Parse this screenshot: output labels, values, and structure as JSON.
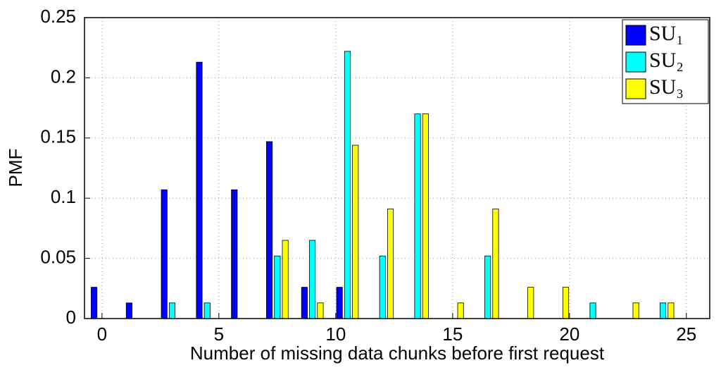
{
  "chart_data": {
    "type": "bar",
    "xlabel": "Number of missing data chunks before first request",
    "ylabel": "PMF",
    "x": [
      0,
      1.5,
      3,
      4.5,
      6,
      7.5,
      9,
      10.5,
      12,
      13.5,
      15,
      16.5,
      18,
      19.5,
      21,
      22.5,
      24
    ],
    "series": [
      {
        "name": "SU₁",
        "color": "#0000ff",
        "values": [
          0.026,
          0.013,
          0.107,
          0.213,
          0.107,
          0.147,
          0.026,
          0.026,
          0,
          0,
          0,
          0,
          0,
          0,
          0,
          0,
          0
        ]
      },
      {
        "name": "SU₂",
        "color": "#00ffff",
        "values": [
          0,
          0,
          0.013,
          0.013,
          0,
          0.052,
          0.065,
          0.222,
          0.052,
          0.17,
          0,
          0.052,
          0,
          0,
          0.013,
          0,
          0.013
        ]
      },
      {
        "name": "SU₃",
        "color": "#ffff00",
        "values": [
          0,
          0,
          0,
          0,
          0,
          0.065,
          0.013,
          0.144,
          0.091,
          0.17,
          0.013,
          0.091,
          0.026,
          0.026,
          0,
          0.013,
          0.013
        ]
      }
    ],
    "xlim": [
      -0.75,
      26
    ],
    "ylim": [
      0,
      0.25
    ],
    "xticks": [
      0,
      5,
      10,
      15,
      20,
      25
    ],
    "yticks": [
      0,
      0.05,
      0.1,
      0.15,
      0.2,
      0.25
    ],
    "grid": true,
    "legend": "top-right"
  }
}
